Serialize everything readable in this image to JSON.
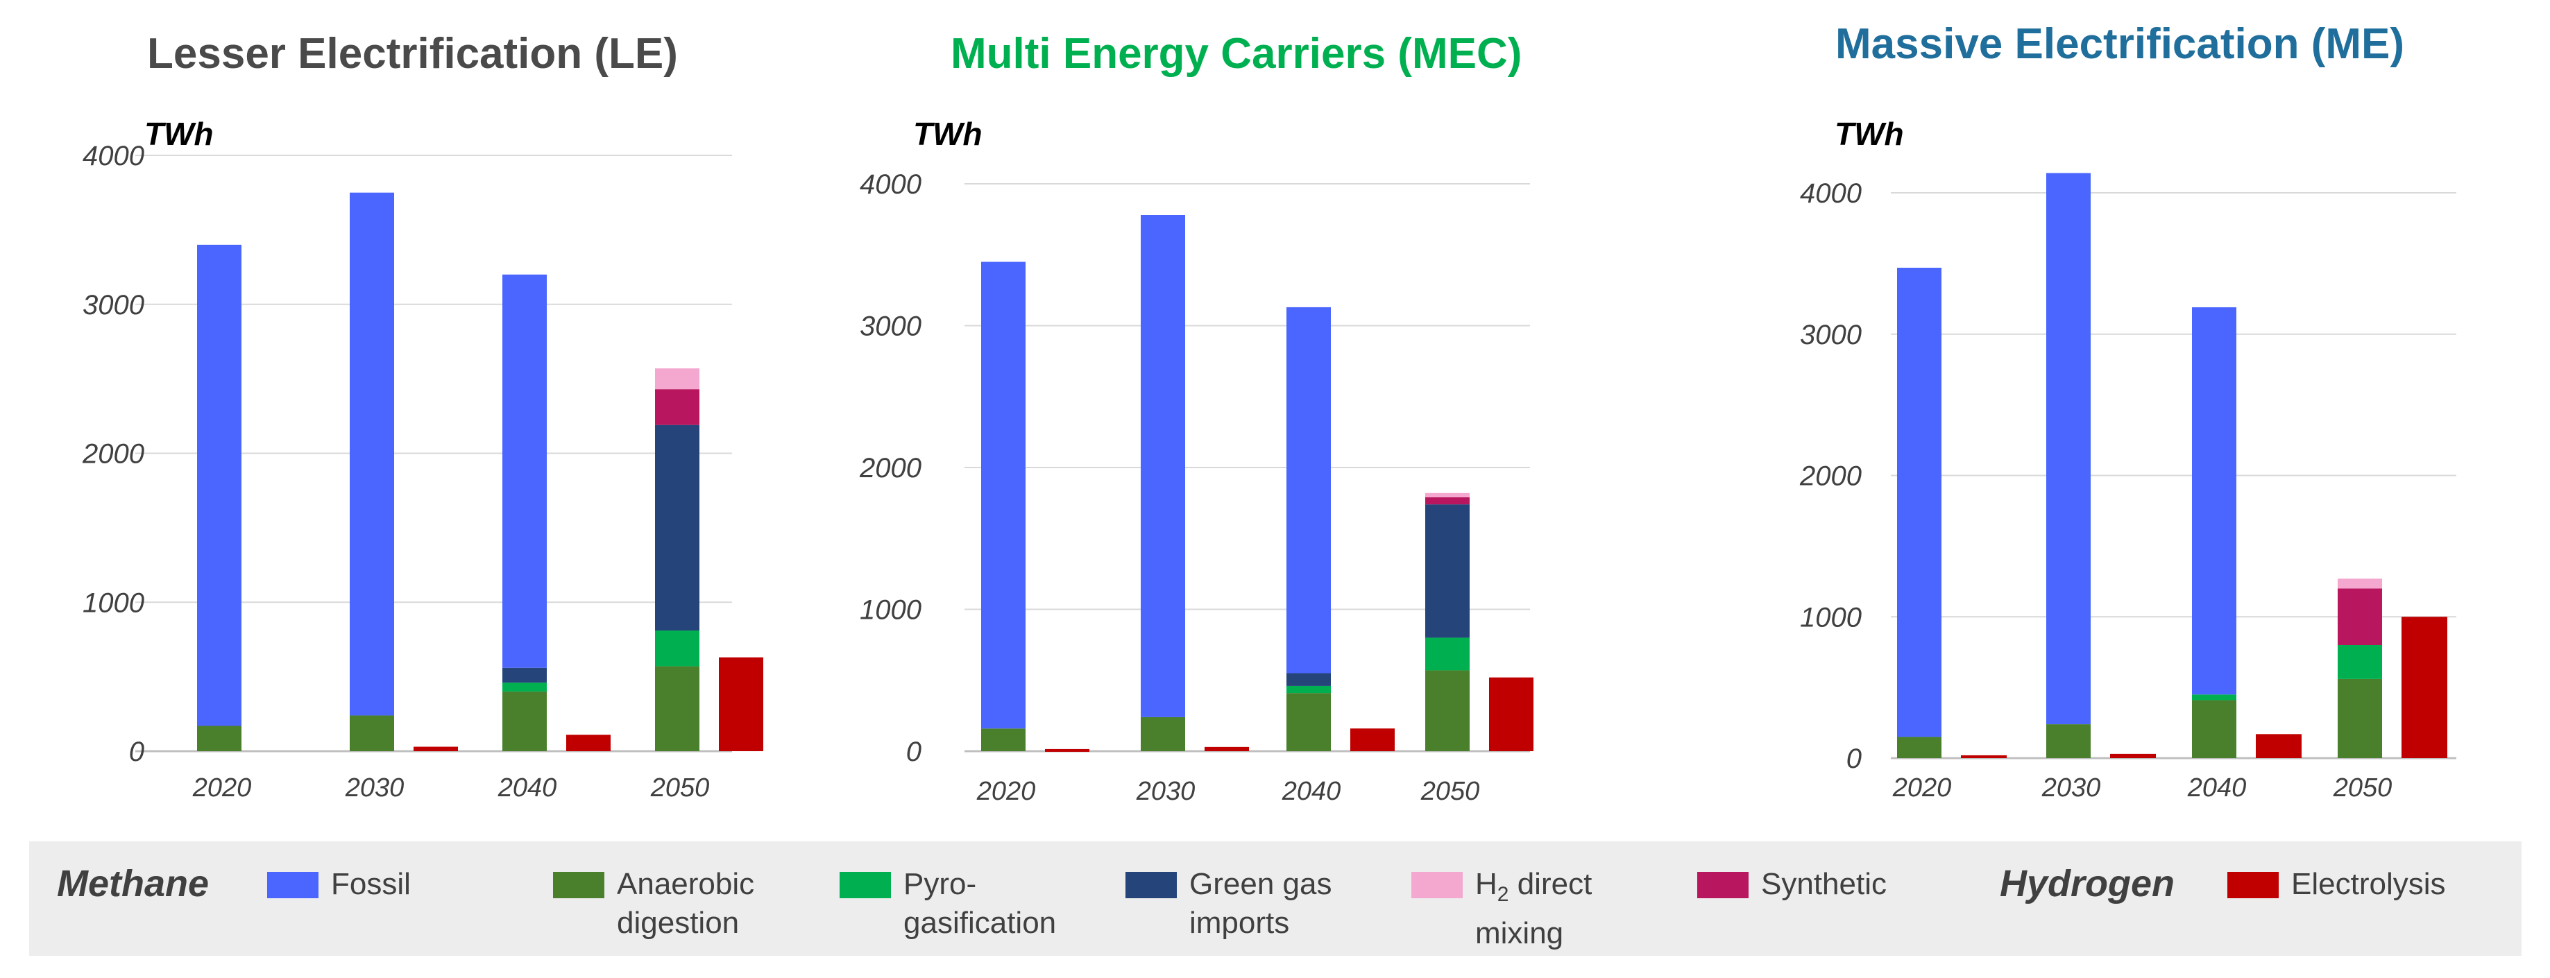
{
  "unit_label": "TWh",
  "legend": {
    "methane_label": "Methane",
    "hydrogen_label": "Hydrogen",
    "items": [
      {
        "key": "fossil",
        "line1": "Fossil",
        "line2": "",
        "color": "#4a66ff"
      },
      {
        "key": "anaerobic",
        "line1": "Anaerobic",
        "line2": "digestion",
        "color": "#4a7f2c"
      },
      {
        "key": "pyro",
        "line1": "Pyro-",
        "line2": "gasification",
        "color": "#00b050"
      },
      {
        "key": "green_imports",
        "line1": "Green gas",
        "line2": "imports",
        "color": "#254479"
      },
      {
        "key": "h2_mixing",
        "line1_main": "H",
        "line1_sub": "2",
        "line1_rest": " direct",
        "line2": "mixing",
        "color": "#f4a8d0"
      },
      {
        "key": "synthetic",
        "line1": "Synthetic",
        "line2": "",
        "color": "#b8175f"
      },
      {
        "key": "electrolysis",
        "line1": "Electrolysis",
        "line2": "",
        "color": "#c00000"
      }
    ]
  },
  "chart_data": [
    {
      "type": "bar",
      "title": "Lesser Electrification (LE)",
      "title_color": "#4a4a4a",
      "ylabel": "TWh",
      "ylim": [
        0,
        4000
      ],
      "yticks": [
        0,
        1000,
        2000,
        3000,
        4000
      ],
      "categories": [
        "2020",
        "2030",
        "2040",
        "2050"
      ],
      "methane_series": [
        {
          "name": "Anaerobic digestion",
          "color": "#4a7f2c",
          "values": [
            170,
            240,
            400,
            570
          ]
        },
        {
          "name": "Pyro-gasification",
          "color": "#00b050",
          "values": [
            0,
            0,
            60,
            240
          ]
        },
        {
          "name": "Green gas imports",
          "color": "#254479",
          "values": [
            0,
            0,
            100,
            1380
          ]
        },
        {
          "name": "Fossil",
          "color": "#4a66ff",
          "values": [
            3230,
            3510,
            2640,
            0
          ]
        },
        {
          "name": "Synthetic",
          "color": "#b8175f",
          "values": [
            0,
            0,
            0,
            240
          ]
        },
        {
          "name": "H2 direct mixing",
          "color": "#f4a8d0",
          "values": [
            0,
            0,
            0,
            140
          ]
        }
      ],
      "hydrogen_series": {
        "name": "Electrolysis",
        "color": "#c00000",
        "values": [
          0,
          30,
          110,
          630
        ]
      }
    },
    {
      "type": "bar",
      "title": "Multi Energy Carriers (MEC)",
      "title_color": "#00b050",
      "ylabel": "TWh",
      "ylim": [
        0,
        4000
      ],
      "yticks": [
        0,
        1000,
        2000,
        3000,
        4000
      ],
      "categories": [
        "2020",
        "2030",
        "2040",
        "2050"
      ],
      "methane_series": [
        {
          "name": "Anaerobic digestion",
          "color": "#4a7f2c",
          "values": [
            160,
            240,
            410,
            570
          ]
        },
        {
          "name": "Pyro-gasification",
          "color": "#00b050",
          "values": [
            0,
            0,
            50,
            230
          ]
        },
        {
          "name": "Green gas imports",
          "color": "#254479",
          "values": [
            0,
            0,
            90,
            940
          ]
        },
        {
          "name": "Fossil",
          "color": "#4a66ff",
          "values": [
            3290,
            3540,
            2580,
            0
          ]
        },
        {
          "name": "Synthetic",
          "color": "#b8175f",
          "values": [
            0,
            0,
            0,
            50
          ]
        },
        {
          "name": "H2 direct mixing",
          "color": "#f4a8d0",
          "values": [
            0,
            0,
            0,
            30
          ]
        }
      ],
      "hydrogen_series": {
        "name": "Electrolysis",
        "color": "#c00000",
        "values": [
          15,
          30,
          160,
          520
        ]
      }
    },
    {
      "type": "bar",
      "title": "Massive Electrification (ME)",
      "title_color": "#1f6e9c",
      "ylabel": "TWh",
      "ylim": [
        0,
        4000
      ],
      "yticks": [
        0,
        1000,
        2000,
        3000,
        4000
      ],
      "categories": [
        "2020",
        "2030",
        "2040",
        "2050"
      ],
      "methane_series": [
        {
          "name": "Anaerobic digestion",
          "color": "#4a7f2c",
          "values": [
            150,
            240,
            410,
            560
          ]
        },
        {
          "name": "Pyro-gasification",
          "color": "#00b050",
          "values": [
            0,
            0,
            40,
            240
          ]
        },
        {
          "name": "Green gas imports",
          "color": "#254479",
          "values": [
            0,
            0,
            0,
            0
          ]
        },
        {
          "name": "Fossil",
          "color": "#4a66ff",
          "values": [
            3320,
            3900,
            2740,
            0
          ]
        },
        {
          "name": "Synthetic",
          "color": "#b8175f",
          "values": [
            0,
            0,
            0,
            400
          ]
        },
        {
          "name": "H2 direct mixing",
          "color": "#f4a8d0",
          "values": [
            0,
            0,
            0,
            70
          ]
        }
      ],
      "hydrogen_series": {
        "name": "Electrolysis",
        "color": "#c00000",
        "values": [
          20,
          30,
          170,
          1000
        ]
      }
    }
  ]
}
